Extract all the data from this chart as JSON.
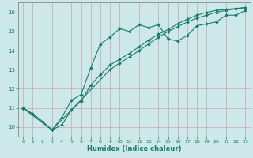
{
  "xlabel": "Humidex (Indice chaleur)",
  "xlim": [
    -0.5,
    23.5
  ],
  "ylim": [
    9.5,
    16.5
  ],
  "xticks": [
    0,
    1,
    2,
    3,
    4,
    5,
    6,
    7,
    8,
    9,
    10,
    11,
    12,
    13,
    14,
    15,
    16,
    17,
    18,
    19,
    20,
    21,
    22,
    23
  ],
  "yticks": [
    10,
    11,
    12,
    13,
    14,
    15,
    16
  ],
  "bg_color": "#cce8e8",
  "line_color": "#1a7a6e",
  "line1_x": [
    0,
    1,
    2,
    3,
    4,
    5,
    6,
    7,
    8,
    9,
    10,
    11,
    12,
    13,
    14,
    15,
    16,
    17,
    18,
    19,
    20,
    21,
    22,
    23
  ],
  "line1_y": [
    11.0,
    10.7,
    10.3,
    9.85,
    10.5,
    11.4,
    11.7,
    13.1,
    14.35,
    14.7,
    15.15,
    15.0,
    15.35,
    15.2,
    15.35,
    14.6,
    14.5,
    14.8,
    15.3,
    15.4,
    15.5,
    15.85,
    15.85,
    16.1
  ],
  "line2_x": [
    0,
    3,
    4,
    5,
    6,
    7,
    8,
    9,
    10,
    11,
    12,
    13,
    14,
    15,
    16,
    17,
    18,
    19,
    20,
    21,
    22,
    23
  ],
  "line2_y": [
    11.0,
    9.85,
    10.1,
    10.9,
    11.35,
    12.2,
    12.75,
    13.25,
    13.55,
    13.85,
    14.2,
    14.55,
    14.85,
    15.1,
    15.4,
    15.65,
    15.85,
    16.0,
    16.1,
    16.15,
    16.2,
    16.25
  ],
  "line3_x": [
    0,
    3,
    9,
    10,
    11,
    12,
    13,
    14,
    15,
    16,
    17,
    18,
    19,
    20,
    21,
    22,
    23
  ],
  "line3_y": [
    11.0,
    9.85,
    13.0,
    13.35,
    13.65,
    14.0,
    14.35,
    14.7,
    15.0,
    15.25,
    15.5,
    15.7,
    15.85,
    16.0,
    16.1,
    16.18,
    16.25
  ]
}
